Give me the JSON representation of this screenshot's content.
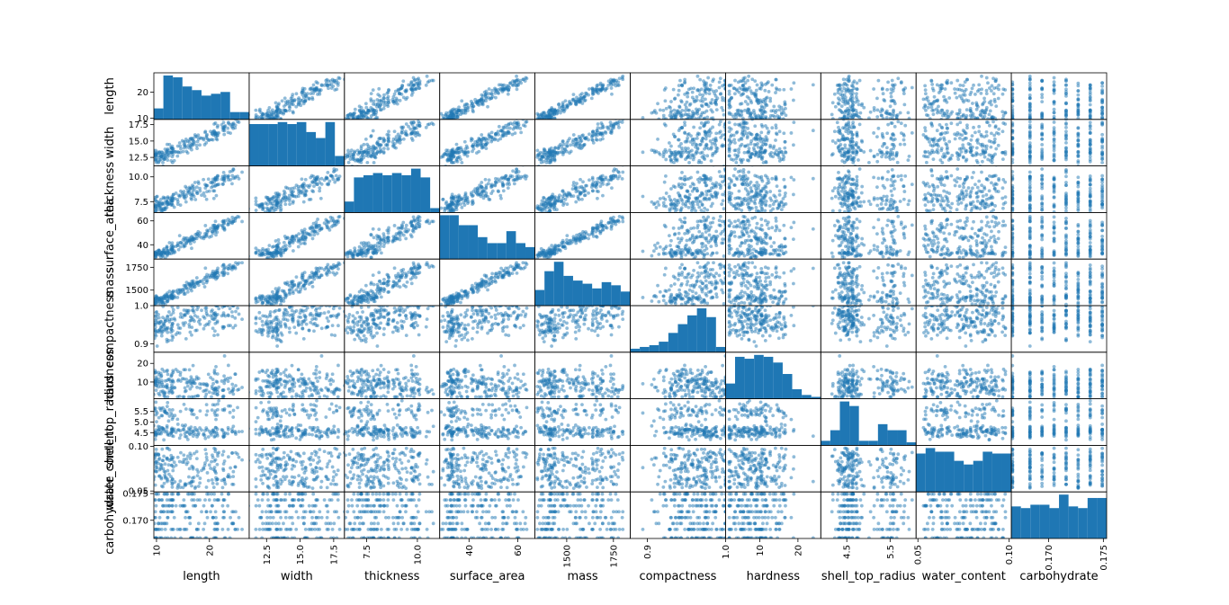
{
  "chart_data": {
    "type": "scatter_matrix",
    "title": "",
    "variables": [
      "length",
      "width",
      "thickness",
      "surface_area",
      "mass",
      "compactness",
      "hardness",
      "shell_top_radius",
      "water_content",
      "carbohydrate"
    ],
    "ranges": {
      "length": [
        9.5,
        27.5
      ],
      "width": [
        11.2,
        18.3
      ],
      "thickness": [
        6.4,
        11.1
      ],
      "surface_area": [
        28,
        67
      ],
      "mass": [
        1330,
        1840
      ],
      "compactness": [
        0.878,
        1.0
      ],
      "hardness": [
        1,
        26
      ],
      "shell_top_radius": [
        3.9,
        6.1
      ],
      "water_content": [
        0.049,
        0.1012
      ],
      "carbohydrate": [
        0.1666,
        0.1753
      ]
    },
    "x_ticks": {
      "length": [
        10,
        20
      ],
      "width": [
        12.5,
        15.0,
        17.5
      ],
      "thickness": [
        7.5,
        10.0
      ],
      "surface_area": [
        40,
        60
      ],
      "mass": [
        1500,
        1750
      ],
      "compactness": [
        0.9,
        1.0
      ],
      "hardness": [
        10,
        20
      ],
      "shell_top_radius": [
        4.5,
        5.5
      ],
      "water_content": [
        0.05,
        0.1
      ],
      "carbohydrate": [
        0.17,
        0.175
      ]
    },
    "x_tick_labels": {
      "length": [
        "10",
        "20"
      ],
      "width": [
        "12.5",
        "15.0",
        "17.5"
      ],
      "thickness": [
        "7.5",
        "10.0"
      ],
      "surface_area": [
        "40",
        "60"
      ],
      "mass": [
        "1500",
        "1750"
      ],
      "compactness": [
        "0.9",
        "1.0"
      ],
      "hardness": [
        "10",
        "20"
      ],
      "shell_top_radius": [
        "4.5",
        "5.5"
      ],
      "water_content": [
        "0.05",
        "0.10"
      ],
      "carbohydrate": [
        "0.170",
        "0.175"
      ]
    },
    "y_ticks": {
      "length": [
        10,
        20
      ],
      "width": [
        12.5,
        15.0,
        17.5
      ],
      "thickness": [
        7.5,
        10.0
      ],
      "surface_area": [
        40,
        60
      ],
      "mass": [
        1500,
        1750
      ],
      "compactness": [
        0.9,
        1.0
      ],
      "hardness": [
        10,
        20
      ],
      "shell_top_radius": [
        4.5,
        5.0,
        5.5
      ],
      "water_content": [
        0.05,
        0.1
      ],
      "carbohydrate": [
        0.17,
        0.175
      ]
    },
    "y_tick_labels": {
      "length": [
        "10",
        "20"
      ],
      "width": [
        "12.5",
        "15.0",
        "17.5"
      ],
      "thickness": [
        "7.5",
        "10.0"
      ],
      "surface_area": [
        "40",
        "60"
      ],
      "mass": [
        "1500",
        "1750"
      ],
      "compactness": [
        "0.9",
        "1.0"
      ],
      "hardness": [
        "10",
        "20"
      ],
      "shell_top_radius": [
        "4.5",
        "5.0",
        "5.5"
      ],
      "water_content": [
        "0.05",
        "0.10"
      ],
      "carbohydrate": [
        "0.170",
        "0.175"
      ]
    },
    "histograms": {
      "length": [
        6,
        24,
        23,
        18,
        16,
        13,
        14,
        15,
        4,
        4
      ],
      "width": [
        21,
        21,
        21,
        22,
        21,
        22,
        17,
        14,
        22,
        5
      ],
      "thickness": [
        5,
        16,
        17,
        18,
        17,
        18,
        17,
        20,
        16,
        2
      ],
      "surface_area": [
        22,
        22,
        17,
        17,
        11,
        8,
        8,
        14,
        8,
        6
      ],
      "mass": [
        10,
        22,
        28,
        19,
        16,
        14,
        11,
        15,
        13,
        9
      ],
      "compactness": [
        2,
        3,
        4,
        6,
        11,
        16,
        21,
        25,
        20,
        3
      ],
      "hardness": [
        8,
        22,
        21,
        23,
        22,
        19,
        13,
        5,
        2,
        1
      ],
      "shell_top_radius": [
        3,
        10,
        29,
        26,
        3,
        3,
        14,
        10,
        10,
        2
      ],
      "water_content": [
        21,
        24,
        22,
        22,
        17,
        15,
        17,
        22,
        21,
        21
      ],
      "carbohydrate": [
        19,
        18,
        20,
        20,
        18,
        26,
        19,
        18,
        24,
        24
      ]
    },
    "colors": {
      "marker": "#1f77b4",
      "hist": "#1f77b4"
    },
    "marker_alpha": 0.5,
    "sample_count": 200,
    "grid": false,
    "legend": "none"
  }
}
